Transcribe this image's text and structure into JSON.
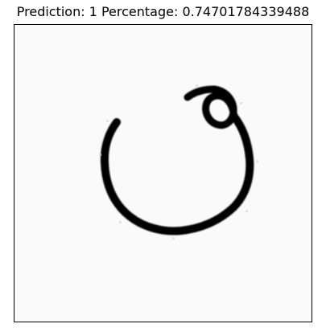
{
  "figure": {
    "title": "Prediction: 1  Percentage: 0.74701784339488"
  },
  "image": {
    "content": "handwritten-digit-stroke",
    "background_color": "#fafafa",
    "stroke_color": "#000000"
  }
}
